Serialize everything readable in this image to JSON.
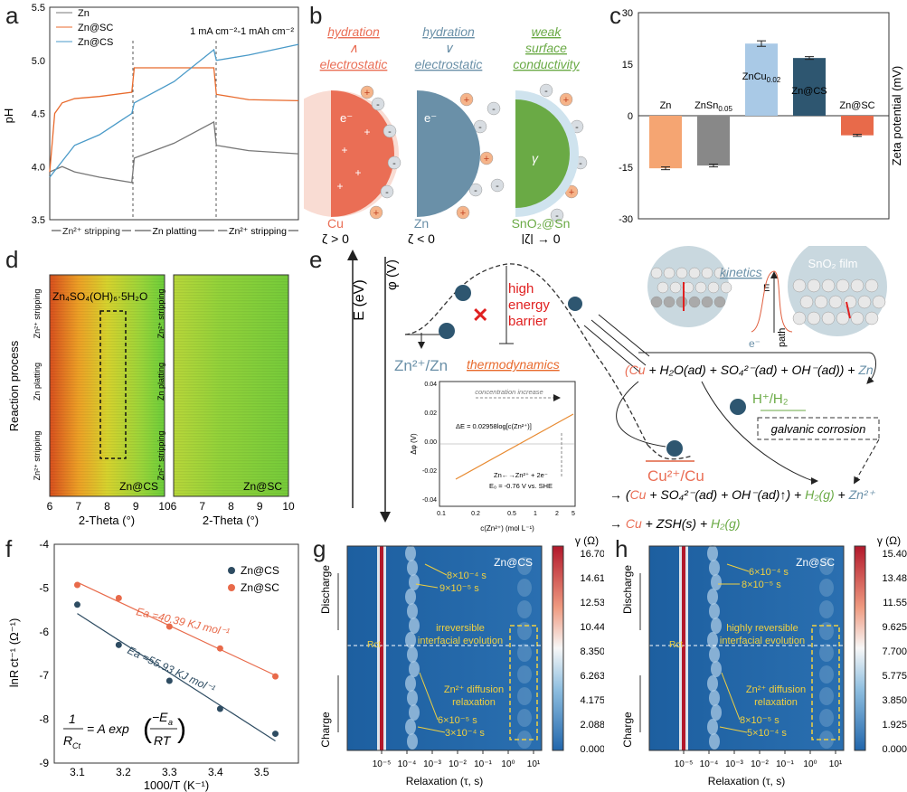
{
  "colors": {
    "zn": "#777777",
    "sc": "#e86a2c",
    "cs": "#4a9ac8",
    "cu": "#ea6e55",
    "znicon": "#6a90a8",
    "sn": "#6aaa45",
    "csbar": "#2e5670"
  },
  "panels": {
    "a": {
      "label": "a",
      "legend": [
        "Zn",
        "Zn@SC",
        "Zn@CS"
      ],
      "note": "1 mA cm⁻²-1 mAh cm⁻²",
      "ylabel": "pH",
      "yticks": [
        "3.5",
        "4.0",
        "4.5",
        "5.0",
        "5.5"
      ],
      "seg": [
        "Zn²⁺ stripping",
        "Zn platting",
        "Zn²⁺ stripping"
      ]
    },
    "b": {
      "label": "b",
      "cols": [
        {
          "top": [
            "hydration",
            "∧",
            "electrostatic"
          ],
          "name": "Cu",
          "zeta": "ζ > 0"
        },
        {
          "top": [
            "hydration",
            "∨",
            "electrostatic"
          ],
          "name": "Zn",
          "zeta": "ζ < 0"
        },
        {
          "top": [
            "weak",
            "surface",
            "conductivity"
          ],
          "name": "SnO₂@Sn",
          "zeta": "|ζ| → 0"
        }
      ],
      "eminus": "e⁻"
    },
    "c": {
      "label": "c",
      "ylabel": "Zeta potential (mV)",
      "yticks": [
        "30",
        "15",
        "0",
        "-15",
        "-30"
      ]
    },
    "d": {
      "label": "d",
      "ylabel": "Reaction process",
      "xlabel": "2-Theta (°)",
      "xticks": [
        "6",
        "7",
        "8",
        "9",
        "10"
      ],
      "phase": "Zn₄SO₄(OH)₆·5H₂O",
      "left": "Zn@CS",
      "right": "Zn@SC",
      "side": [
        "Zn²⁺ stripping",
        "Zn platting",
        "Zn²⁺ stripping"
      ]
    },
    "e": {
      "label": "e",
      "ev": "E (eV)",
      "phi": "φ (V)",
      "barrier": [
        "high",
        "energy",
        "barrier"
      ],
      "znzn": "Zn²⁺/Zn",
      "thermo": "thermodynamics",
      "kinetics": "kinetics",
      "film": "SnO₂ film",
      "eaxis": "E",
      "path": "path",
      "eminus": "e⁻",
      "hh": "H⁺/H₂",
      "galvanic": "galvanic corrosion",
      "cucu": "Cu²⁺/Cu",
      "r1": [
        "(Cu",
        " + H₂O(ad) + SO₄²⁻(ad) + OH⁻(ad)) + ",
        "Zn"
      ],
      "r2": [
        "→ (",
        "Cu",
        " + SO₄²⁻(ad) + OH⁻(ad)↑) + ",
        "H₂(g)",
        " + ",
        "Zn²⁺"
      ],
      "r3": [
        "→ ",
        "Cu",
        " + ZSH(s) + ",
        "H₂(g)"
      ],
      "inset": {
        "title": "concentration increase",
        "eq": "ΔE = 0.02958log[c(Zn²⁺)]",
        "r": "Zn←→Zn²⁺ + 2e⁻",
        "e0": "E₀ = -0.76 V vs. SHE",
        "ylabel": "Δφ (V)",
        "xlabel": "c(Zn²⁺) (mol L⁻¹)",
        "yticks": [
          "0.04",
          "0.02",
          "0.00",
          "-0.02",
          "-0.04"
        ],
        "xticks": [
          "0.1",
          "0.2",
          "0.5",
          "1",
          "2",
          "5"
        ]
      }
    },
    "f": {
      "label": "f",
      "legend": [
        "Zn@CS",
        "Zn@SC"
      ],
      "ylabel": "lnR ct⁻¹ (Ω⁻¹)",
      "xlabel": "1000/T (K⁻¹)",
      "ea_sc": "Ea =40.39 KJ mol⁻¹",
      "ea_cs": "Ea =55.93 KJ mol⁻¹",
      "eq": [
        "1",
        "R",
        "Ct",
        "= A exp",
        "−E",
        "a",
        "RT"
      ],
      "yticks": [
        "-4",
        "-5",
        "-6",
        "-7",
        "-8",
        "-9"
      ],
      "xticks": [
        "3.1",
        "3.2",
        "3.3",
        "3.4",
        "3.5"
      ]
    },
    "g": {
      "label": "g",
      "title": "Zn@CS",
      "cb_title": "γ (Ω)",
      "cb": [
        "16.70",
        "14.61",
        "12.53",
        "10.44",
        "8.350",
        "6.263",
        "4.175",
        "2.088",
        "0.000"
      ],
      "ann": [
        "8×10⁻⁴ s",
        "9×10⁻⁵ s",
        "irreversible",
        "interfacial evolution",
        "Zn²⁺ diffusion",
        "relaxation",
        "6×10⁻⁵ s",
        "3×10⁻⁴ s"
      ],
      "rct": "Rct",
      "xlabel": "Relaxation (τ, s)",
      "discharge": "Discharge",
      "charge": "Charge",
      "xticks": [
        "10⁻⁵",
        "10⁻⁴",
        "10⁻³",
        "10⁻²",
        "10⁻¹",
        "10⁰",
        "10¹"
      ]
    },
    "h": {
      "label": "h",
      "title": "Zn@SC",
      "cb_title": "γ (Ω)",
      "cb": [
        "15.40",
        "13.48",
        "11.55",
        "9.625",
        "7.700",
        "5.775",
        "3.850",
        "1.925",
        "0.000"
      ],
      "ann": [
        "6×10⁻⁴ s",
        "8×10⁻⁵ s",
        "highly reversible",
        "interfacial evolution",
        "Zn²⁺ diffusion",
        "relaxation",
        "8×10⁻⁵ s",
        "5×10⁻⁴ s"
      ],
      "rct": "Rct",
      "xlabel": "Relaxation (τ, s)",
      "discharge": "Discharge",
      "charge": "Charge",
      "xticks": [
        "10⁻⁵",
        "10⁻⁴",
        "10⁻³",
        "10⁻²",
        "10⁻¹",
        "10⁰",
        "10¹"
      ]
    }
  },
  "chart_data": [
    {
      "panel": "c",
      "type": "bar",
      "categories": [
        "Zn",
        "ZnSn0.05",
        "ZnCu0.02",
        "Zn@CS",
        "Zn@SC"
      ],
      "values": [
        -15.3,
        -14.5,
        21,
        16.8,
        -5.7
      ],
      "errors": [
        0.4,
        0.4,
        0.8,
        0.4,
        0.3
      ],
      "ylabel": "Zeta potential (mV)",
      "ylim": [
        -30,
        30
      ]
    },
    {
      "panel": "f",
      "type": "scatter",
      "x": [
        3.1,
        3.19,
        3.3,
        3.41,
        3.53
      ],
      "series": [
        {
          "name": "Zn@CS",
          "values": [
            -5.38,
            -6.3,
            -7.12,
            -7.76,
            -8.33
          ]
        },
        {
          "name": "Zn@SC",
          "values": [
            -4.93,
            -5.23,
            -5.88,
            -6.38,
            -7.02
          ]
        }
      ],
      "xlim": [
        3.05,
        3.58
      ],
      "ylim": [
        -9,
        -4
      ],
      "xlabel": "1000/T (K⁻¹)"
    },
    {
      "panel": "a",
      "type": "line",
      "series": [
        {
          "name": "Zn",
          "x": [
            0,
            5,
            10,
            20,
            33,
            34,
            50,
            66,
            67,
            80,
            100
          ],
          "values": [
            3.95,
            4.0,
            3.95,
            3.9,
            3.85,
            4.08,
            4.22,
            4.42,
            4.2,
            4.15,
            4.12
          ]
        },
        {
          "name": "Zn@SC",
          "x": [
            0,
            2,
            5,
            10,
            20,
            33,
            34,
            50,
            66,
            67,
            80,
            100
          ],
          "values": [
            3.95,
            4.5,
            4.6,
            4.64,
            4.66,
            4.7,
            4.93,
            4.93,
            4.93,
            4.68,
            4.63,
            4.62
          ]
        },
        {
          "name": "Zn@CS",
          "x": [
            0,
            5,
            10,
            20,
            33,
            34,
            50,
            66,
            67,
            80,
            100
          ],
          "values": [
            3.9,
            4.05,
            4.2,
            4.3,
            4.5,
            4.6,
            4.8,
            5.1,
            5.0,
            5.05,
            5.15
          ]
        }
      ],
      "ylim": [
        3.5,
        5.5
      ],
      "ylabel": "pH"
    }
  ]
}
